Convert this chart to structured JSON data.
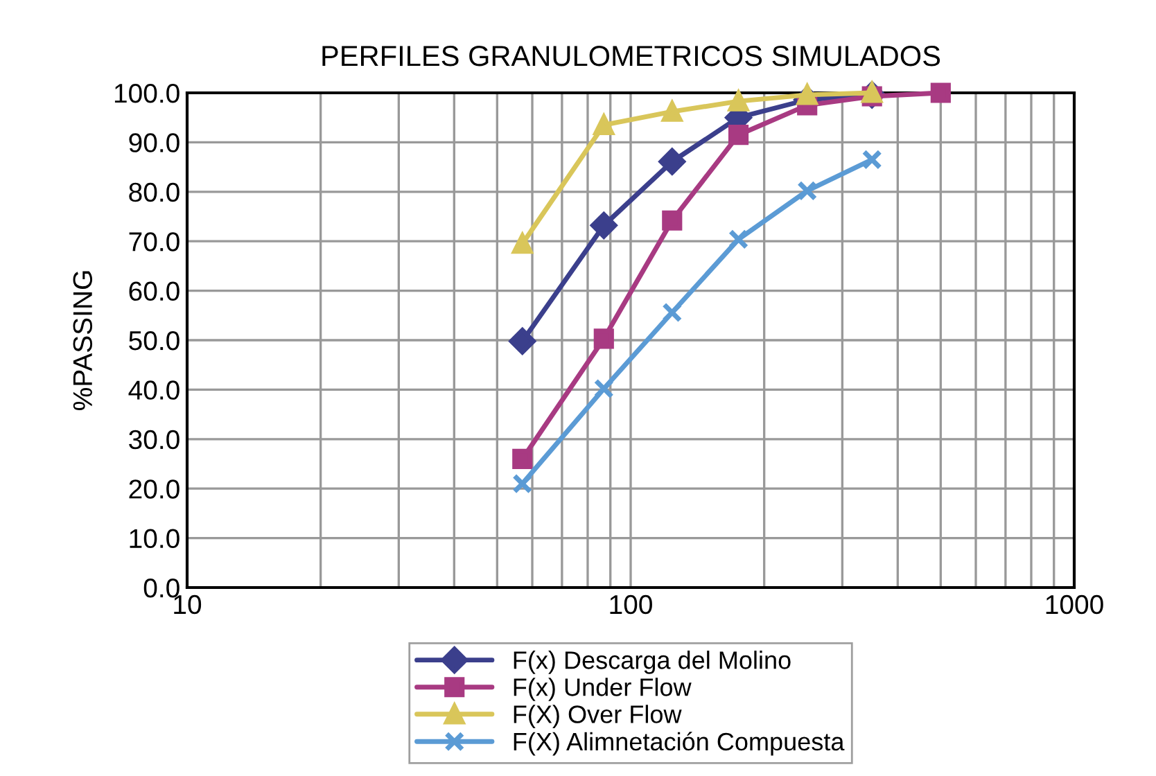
{
  "chart_data": {
    "type": "line",
    "title": "PERFILES GRANULOMETRICOS SIMULADOS",
    "ylabel": "%PASSING",
    "log": "x",
    "grid": true,
    "legend": "bottom",
    "line_style": "solid",
    "xlim": [
      10,
      1000
    ],
    "ylim": [
      0,
      100
    ],
    "xticks": [
      10,
      {
        "value": 20,
        "label": null
      },
      {
        "value": 30,
        "label": null
      },
      {
        "value": 40,
        "label": null
      },
      {
        "value": 50,
        "label": null
      },
      {
        "value": 60,
        "label": null
      },
      {
        "value": 70,
        "label": null
      },
      {
        "value": 80,
        "label": null
      },
      {
        "value": 90,
        "label": null
      },
      100,
      {
        "value": 200,
        "label": null
      },
      {
        "value": 300,
        "label": null
      },
      {
        "value": 400,
        "label": null
      },
      {
        "value": 500,
        "label": null
      },
      {
        "value": 600,
        "label": null
      },
      {
        "value": 700,
        "label": null
      },
      {
        "value": 800,
        "label": null
      },
      {
        "value": 900,
        "label": null
      },
      1000
    ],
    "yticks": [
      {
        "value": 0,
        "label": "0.0"
      },
      {
        "value": 10,
        "label": "10.0"
      },
      {
        "value": 20,
        "label": "20.0"
      },
      {
        "value": 30,
        "label": "30.0"
      },
      {
        "value": 40,
        "label": "40.0"
      },
      {
        "value": 50,
        "label": "50.0"
      },
      {
        "value": 60,
        "label": "60.0"
      },
      {
        "value": 70,
        "label": "70.0"
      },
      {
        "value": 80,
        "label": "80.0"
      },
      {
        "value": 90,
        "label": "90.0"
      },
      {
        "value": 100,
        "label": "100.0"
      }
    ],
    "series": [
      {
        "name": "F(x) Descarga del Molino",
        "color": "#3b3f8c",
        "marker": "diamond",
        "x": [
          57,
          87,
          124,
          175,
          250,
          350
        ],
        "values": [
          49.8,
          73.2,
          86.1,
          95,
          98.6,
          99.6
        ]
      },
      {
        "name": "F(x) Under Flow",
        "color": "#a83a82",
        "marker": "square",
        "x": [
          57,
          87,
          124,
          175,
          250,
          350,
          500
        ],
        "values": [
          26,
          50.3,
          74.2,
          91.5,
          97.5,
          99.3,
          100
        ]
      },
      {
        "name": "F(X) Over Flow",
        "color": "#d9c65a",
        "marker": "triangle",
        "x": [
          57,
          87,
          124,
          175,
          250,
          350
        ],
        "values": [
          69.5,
          93.5,
          96.2,
          98.3,
          99.6,
          100
        ]
      },
      {
        "name": "F(X) Alimnetación Compuesta",
        "color": "#5b9bd5",
        "marker": "cross",
        "x": [
          57,
          87,
          124,
          175,
          250,
          350
        ],
        "values": [
          21,
          40.2,
          55.6,
          70.4,
          80.2,
          86.5
        ]
      }
    ]
  }
}
